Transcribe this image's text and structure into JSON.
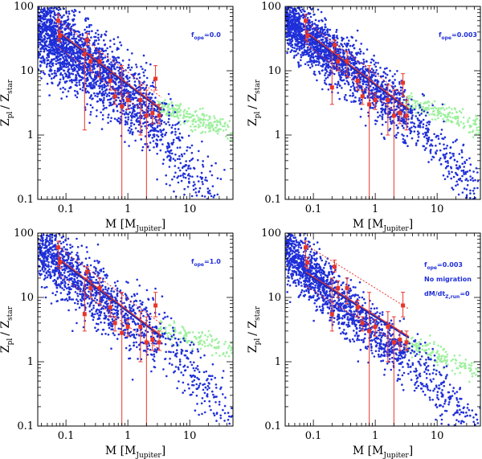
{
  "colors": {
    "model_planets": "#1f2fd8",
    "light_planets": "#9ef09e",
    "observed": "#e8352a",
    "fit": "#1a2ab8",
    "axes": "#000000"
  },
  "chart_data": [
    {
      "type": "scatter",
      "xlabel": "M",
      "xlabel_unit": "[M",
      "xlabel_unit_sub": "Jupiter",
      "xlabel_close": "]",
      "ylabel": "Z",
      "ylabel_sub1": "pl",
      "ylabel_mid": "/ Z",
      "ylabel_sub2": "star",
      "xscale": "log",
      "yscale": "log",
      "xlim": [
        0.035,
        50
      ],
      "ylim": [
        0.1,
        100
      ],
      "xticks": [
        {
          "v": 0.1,
          "label": "0.1"
        },
        {
          "v": 1,
          "label": "1"
        },
        {
          "v": 10,
          "label": "10"
        }
      ],
      "yticks": [
        {
          "v": 0.1,
          "label": "0.1"
        },
        {
          "v": 1,
          "label": "1"
        },
        {
          "v": 10,
          "label": "10"
        },
        {
          "v": 100,
          "label": "100"
        }
      ],
      "annotations": [
        {
          "pre": "f",
          "sub": "ope",
          "post": "=0.0"
        }
      ],
      "annotation_pos": "upper-right",
      "model": {
        "slope": -0.75,
        "amp": 4.2,
        "scatter_dex": 0.3,
        "n": 2600,
        "light_mass_min": 3.0,
        "light_frac": 0.45,
        "sat_mass": 2.0,
        "sat_drop": 1.1
      },
      "fit_lines": {
        "solid_amp": 6.0,
        "dotted_amp_hi": 9.5,
        "dotted_amp_lo": 3.6,
        "slope": -0.72,
        "x_range": [
          0.075,
          3.5
        ]
      },
      "observed_points": [
        {
          "m": 0.075,
          "z": 60,
          "lo": 30,
          "hi": 75
        },
        {
          "m": 0.08,
          "z": 35,
          "lo": 28,
          "hi": 42
        },
        {
          "m": 0.2,
          "z": 18,
          "lo": 1.2,
          "hi": 22
        },
        {
          "m": 0.22,
          "z": 30,
          "lo": 25,
          "hi": 38
        },
        {
          "m": 0.25,
          "z": 14,
          "lo": 10,
          "hi": 18
        },
        {
          "m": 0.35,
          "z": 14,
          "lo": 8,
          "hi": 20
        },
        {
          "m": 0.52,
          "z": 7,
          "lo": 5,
          "hi": 9
        },
        {
          "m": 0.62,
          "z": 4,
          "lo": 3,
          "hi": 5
        },
        {
          "m": 0.8,
          "z": 2.8,
          "lo": 0.1,
          "hi": 12
        },
        {
          "m": 1.0,
          "z": 3.5,
          "lo": 2.5,
          "hi": 4.5
        },
        {
          "m": 1.6,
          "z": 3.5,
          "lo": 1.0,
          "hi": 6
        },
        {
          "m": 2.0,
          "z": 2.0,
          "lo": 0.1,
          "hi": 5
        },
        {
          "m": 2.5,
          "z": 2.2,
          "lo": 1.5,
          "hi": 3
        },
        {
          "m": 2.8,
          "z": 7.5,
          "lo": 5,
          "hi": 12
        },
        {
          "m": 3.2,
          "z": 2.0,
          "lo": 1.5,
          "hi": 3
        }
      ]
    },
    {
      "type": "scatter",
      "xlabel": "M",
      "xlabel_unit": "[M",
      "xlabel_unit_sub": "Jupiter",
      "xlabel_close": "]",
      "ylabel": "Z",
      "ylabel_sub1": "pl",
      "ylabel_mid": "/ Z",
      "ylabel_sub2": "star",
      "xscale": "log",
      "yscale": "log",
      "xlim": [
        0.035,
        50
      ],
      "ylim": [
        0.1,
        100
      ],
      "xticks": [
        {
          "v": 0.1,
          "label": "0.1"
        },
        {
          "v": 1,
          "label": "1"
        },
        {
          "v": 10,
          "label": "10"
        }
      ],
      "yticks": [
        {
          "v": 0.1,
          "label": "0.1"
        },
        {
          "v": 1,
          "label": "1"
        },
        {
          "v": 10,
          "label": "10"
        },
        {
          "v": 100,
          "label": "100"
        }
      ],
      "annotations": [
        {
          "pre": "f",
          "sub": "ope",
          "post": "=0.003"
        }
      ],
      "annotation_pos": "upper-right",
      "model": {
        "slope": -0.75,
        "amp": 5.0,
        "scatter_dex": 0.22,
        "n": 2300,
        "light_mass_min": 3.0,
        "light_frac": 0.45,
        "sat_mass": 6.0,
        "sat_drop": 0.6
      },
      "fit_lines": {
        "solid_amp": 6.0,
        "dotted_amp_hi": 9.0,
        "dotted_amp_lo": 4.0,
        "slope": -0.72,
        "x_range": [
          0.075,
          3.5
        ]
      },
      "observed_points": [
        {
          "m": 0.075,
          "z": 60,
          "lo": 30,
          "hi": 75
        },
        {
          "m": 0.08,
          "z": 35,
          "lo": 28,
          "hi": 42
        },
        {
          "m": 0.2,
          "z": 5.5,
          "lo": 3,
          "hi": 20
        },
        {
          "m": 0.22,
          "z": 25,
          "lo": 20,
          "hi": 30
        },
        {
          "m": 0.25,
          "z": 14,
          "lo": 10,
          "hi": 18
        },
        {
          "m": 0.35,
          "z": 14,
          "lo": 8,
          "hi": 20
        },
        {
          "m": 0.52,
          "z": 7,
          "lo": 5,
          "hi": 9
        },
        {
          "m": 0.62,
          "z": 4,
          "lo": 3,
          "hi": 5
        },
        {
          "m": 0.8,
          "z": 3,
          "lo": 0.1,
          "hi": 12
        },
        {
          "m": 1.0,
          "z": 3.5,
          "lo": 2.5,
          "hi": 4.5
        },
        {
          "m": 1.6,
          "z": 3.5,
          "lo": 1.0,
          "hi": 6
        },
        {
          "m": 2.0,
          "z": 2.0,
          "lo": 0.1,
          "hi": 5
        },
        {
          "m": 2.5,
          "z": 2.2,
          "lo": 1.5,
          "hi": 3
        },
        {
          "m": 2.8,
          "z": 6.5,
          "lo": 4,
          "hi": 9
        },
        {
          "m": 3.2,
          "z": 2.0,
          "lo": 1.2,
          "hi": 3.5
        }
      ]
    },
    {
      "type": "scatter",
      "xlabel": "M",
      "xlabel_unit": "[M",
      "xlabel_unit_sub": "Jupiter",
      "xlabel_close": "]",
      "ylabel": "Z",
      "ylabel_sub1": "pl",
      "ylabel_mid": "/ Z",
      "ylabel_sub2": "star",
      "xscale": "log",
      "yscale": "log",
      "xlim": [
        0.035,
        50
      ],
      "ylim": [
        0.1,
        100
      ],
      "xticks": [
        {
          "v": 0.1,
          "label": "0.1"
        },
        {
          "v": 1,
          "label": "1"
        },
        {
          "v": 10,
          "label": "10"
        }
      ],
      "yticks": [
        {
          "v": 0.1,
          "label": "0.1"
        },
        {
          "v": 1,
          "label": "1"
        },
        {
          "v": 10,
          "label": "10"
        },
        {
          "v": 100,
          "label": "100"
        }
      ],
      "annotations": [
        {
          "pre": "f",
          "sub": "ope",
          "post": "=1.0"
        }
      ],
      "annotation_pos": "upper-right",
      "model": {
        "slope": -0.72,
        "amp": 5.0,
        "scatter_dex": 0.25,
        "n": 1500,
        "light_mass_min": 3.0,
        "light_frac": 0.4,
        "sat_mass": 5.0,
        "sat_drop": 0.7
      },
      "fit_lines": {
        "solid_amp": 6.0,
        "dotted_amp_hi": 9.5,
        "dotted_amp_lo": 3.6,
        "slope": -0.72,
        "x_range": [
          0.075,
          3.5
        ]
      },
      "observed_points": [
        {
          "m": 0.075,
          "z": 60,
          "lo": 30,
          "hi": 75
        },
        {
          "m": 0.08,
          "z": 35,
          "lo": 28,
          "hi": 42
        },
        {
          "m": 0.2,
          "z": 5.5,
          "lo": 3,
          "hi": 20
        },
        {
          "m": 0.22,
          "z": 25,
          "lo": 20,
          "hi": 30
        },
        {
          "m": 0.25,
          "z": 14,
          "lo": 10,
          "hi": 18
        },
        {
          "m": 0.35,
          "z": 14,
          "lo": 8,
          "hi": 20
        },
        {
          "m": 0.52,
          "z": 7,
          "lo": 5,
          "hi": 9
        },
        {
          "m": 0.62,
          "z": 4,
          "lo": 3,
          "hi": 5
        },
        {
          "m": 0.8,
          "z": 2.8,
          "lo": 0.1,
          "hi": 12
        },
        {
          "m": 1.0,
          "z": 3.5,
          "lo": 2.5,
          "hi": 4.5
        },
        {
          "m": 1.6,
          "z": 3.5,
          "lo": 1.0,
          "hi": 6
        },
        {
          "m": 2.0,
          "z": 2.0,
          "lo": 0.1,
          "hi": 5
        },
        {
          "m": 2.5,
          "z": 2.2,
          "lo": 1.5,
          "hi": 3
        },
        {
          "m": 2.8,
          "z": 7.5,
          "lo": 5,
          "hi": 12
        },
        {
          "m": 3.2,
          "z": 2.0,
          "lo": 1.5,
          "hi": 3
        }
      ]
    },
    {
      "type": "scatter",
      "xlabel": "M",
      "xlabel_unit": "[M",
      "xlabel_unit_sub": "Jupiter",
      "xlabel_close": "]",
      "ylabel": "Z",
      "ylabel_sub1": "pl",
      "ylabel_mid": "/ Z",
      "ylabel_sub2": "star",
      "xscale": "log",
      "yscale": "log",
      "xlim": [
        0.035,
        50
      ],
      "ylim": [
        0.1,
        100
      ],
      "xticks": [
        {
          "v": 0.1,
          "label": "0.1"
        },
        {
          "v": 1,
          "label": "1"
        },
        {
          "v": 10,
          "label": "10"
        }
      ],
      "yticks": [
        {
          "v": 0.1,
          "label": "0.1"
        },
        {
          "v": 1,
          "label": "1"
        },
        {
          "v": 10,
          "label": "10"
        },
        {
          "v": 100,
          "label": "100"
        }
      ],
      "annotations": [
        {
          "pre": "f",
          "sub": "ope",
          "post": "=0.003"
        },
        {
          "pre": "No migration",
          "sub": "",
          "post": ""
        },
        {
          "pre": "dM/dt",
          "sub": "Z,run",
          "post": "=0"
        }
      ],
      "annotation_pos": "right",
      "model": {
        "slope": -0.85,
        "amp": 3.0,
        "scatter_dex": 0.22,
        "n": 1800,
        "light_mass_min": 3.0,
        "light_frac": 0.4,
        "sat_mass": 8.0,
        "sat_drop": 0.5
      },
      "fit_lines": {
        "solid_amp": 5.0,
        "dotted_amp_hi": 14.0,
        "dotted_amp_lo": 3.2,
        "slope": -0.6,
        "x_range": [
          0.075,
          3.5
        ]
      },
      "observed_points": [
        {
          "m": 0.075,
          "z": 60,
          "lo": 30,
          "hi": 75
        },
        {
          "m": 0.08,
          "z": 35,
          "lo": 28,
          "hi": 42
        },
        {
          "m": 0.2,
          "z": 5.5,
          "lo": 3,
          "hi": 20
        },
        {
          "m": 0.22,
          "z": 30,
          "lo": 25,
          "hi": 38
        },
        {
          "m": 0.25,
          "z": 14,
          "lo": 10,
          "hi": 18
        },
        {
          "m": 0.35,
          "z": 14,
          "lo": 8,
          "hi": 20
        },
        {
          "m": 0.52,
          "z": 7,
          "lo": 5,
          "hi": 9
        },
        {
          "m": 0.62,
          "z": 4,
          "lo": 3,
          "hi": 5
        },
        {
          "m": 0.8,
          "z": 3,
          "lo": 0.1,
          "hi": 12
        },
        {
          "m": 1.0,
          "z": 3.5,
          "lo": 2.5,
          "hi": 4.5
        },
        {
          "m": 1.6,
          "z": 3.5,
          "lo": 1.0,
          "hi": 6
        },
        {
          "m": 2.0,
          "z": 2.0,
          "lo": 0.1,
          "hi": 5
        },
        {
          "m": 2.5,
          "z": 2.2,
          "lo": 1.5,
          "hi": 3
        },
        {
          "m": 2.8,
          "z": 7.5,
          "lo": 5,
          "hi": 12
        },
        {
          "m": 3.2,
          "z": 2.0,
          "lo": 1.5,
          "hi": 3
        }
      ]
    }
  ]
}
